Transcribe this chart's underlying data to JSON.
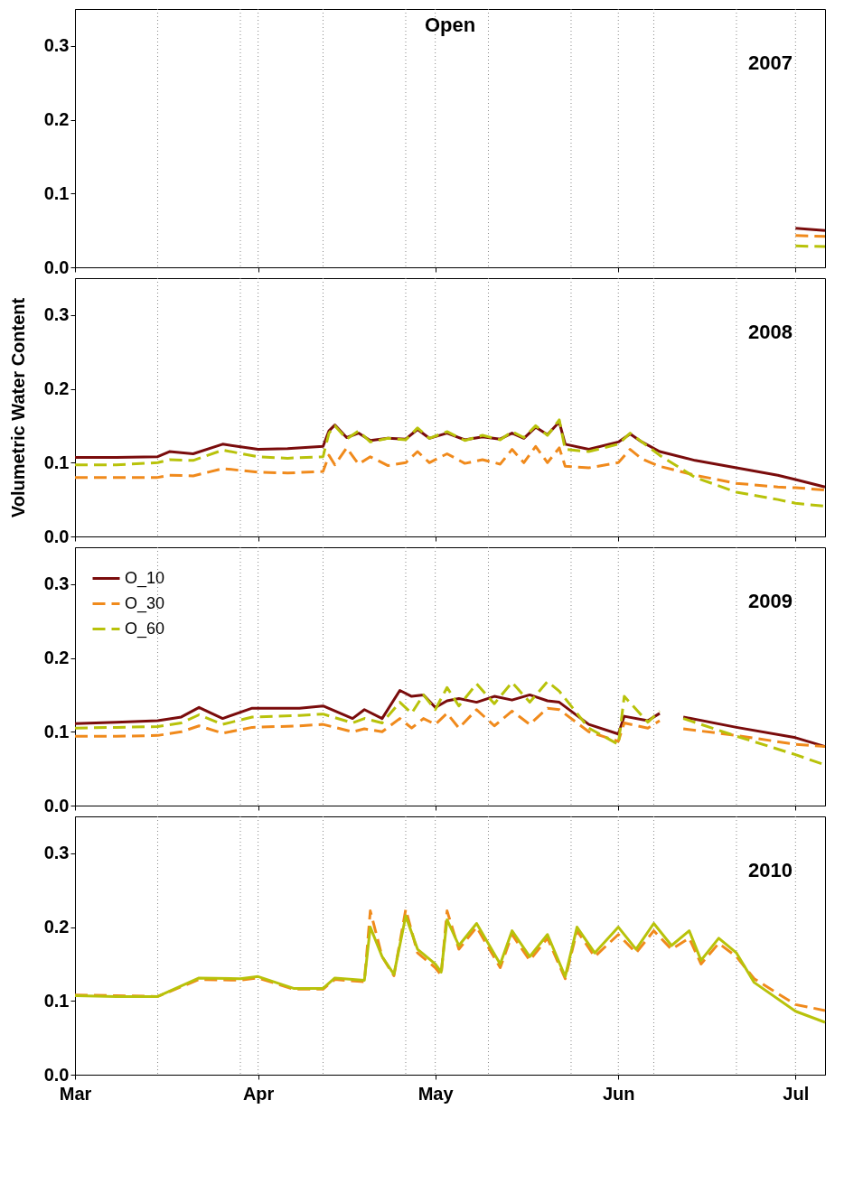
{
  "chart_data": [
    {
      "type": "line",
      "title": "Open",
      "annotations": [
        "2007"
      ],
      "xlim": [
        "--03-01",
        "--07-06"
      ],
      "xticks": [
        {
          "value": "--03-01",
          "label": "Mar"
        },
        {
          "value": "--04-01",
          "label": "Apr"
        },
        {
          "value": "--05-01",
          "label": "May"
        },
        {
          "value": "--06-01",
          "label": "Jun"
        },
        {
          "value": "--07-01",
          "label": "Jul"
        }
      ],
      "ylim": [
        0,
        0.35
      ],
      "yticks": [
        {
          "value": 0,
          "label": "0.0"
        },
        {
          "value": 0.1,
          "label": "0.1"
        },
        {
          "value": 0.2,
          "label": "0.2"
        },
        {
          "value": 0.3,
          "label": "0.3"
        }
      ],
      "tick_labels": "y",
      "ref_lines": [
        {
          "axis": "x",
          "value": "--03-15",
          "line_style": "dotted"
        },
        {
          "axis": "x",
          "value": "--03-29",
          "line_style": "dotted"
        },
        {
          "axis": "x",
          "value": "--04-01",
          "line_style": "dotted"
        },
        {
          "axis": "x",
          "value": "--04-12",
          "line_style": "dotted"
        },
        {
          "axis": "x",
          "value": "--04-26",
          "line_style": "dotted"
        },
        {
          "axis": "x",
          "value": "--05-01",
          "line_style": "dotted"
        },
        {
          "axis": "x",
          "value": "--05-10",
          "line_style": "dotted"
        },
        {
          "axis": "x",
          "value": "--05-24",
          "line_style": "dotted"
        },
        {
          "axis": "x",
          "value": "--06-01",
          "line_style": "dotted"
        },
        {
          "axis": "x",
          "value": "--06-07",
          "line_style": "dotted"
        },
        {
          "axis": "x",
          "value": "--06-21",
          "line_style": "dotted"
        },
        {
          "axis": "x",
          "value": "--07-01",
          "line_style": "dotted"
        }
      ],
      "x": [
        "--07-01",
        "--07-06"
      ],
      "series": [
        {
          "color": "#7a0c0c",
          "line_style": "solid",
          "values": [
            0.053,
            0.05
          ]
        },
        {
          "color": "#f08a1c",
          "line_style": "dashed",
          "values": [
            0.043,
            0.042
          ]
        },
        {
          "color": "#b8c20a",
          "line_style": "dashed",
          "values": [
            0.029,
            0.028
          ]
        }
      ]
    },
    {
      "type": "line",
      "annotations": [
        "2008"
      ],
      "ylabel": "Volumetric Water Content",
      "xlim": [
        "--03-01",
        "--07-06"
      ],
      "xticks": [
        {
          "value": "--03-01",
          "label": "Mar"
        },
        {
          "value": "--04-01",
          "label": "Apr"
        },
        {
          "value": "--05-01",
          "label": "May"
        },
        {
          "value": "--06-01",
          "label": "Jun"
        },
        {
          "value": "--07-01",
          "label": "Jul"
        }
      ],
      "ylim": [
        0,
        0.35
      ],
      "yticks": [
        {
          "value": 0,
          "label": "0.0"
        },
        {
          "value": 0.1,
          "label": "0.1"
        },
        {
          "value": 0.2,
          "label": "0.2"
        },
        {
          "value": 0.3,
          "label": "0.3"
        }
      ],
      "tick_labels": "y",
      "ref_lines": [
        {
          "axis": "x",
          "value": "--03-15",
          "line_style": "dotted"
        },
        {
          "axis": "x",
          "value": "--03-29",
          "line_style": "dotted"
        },
        {
          "axis": "x",
          "value": "--04-01",
          "line_style": "dotted"
        },
        {
          "axis": "x",
          "value": "--04-12",
          "line_style": "dotted"
        },
        {
          "axis": "x",
          "value": "--04-26",
          "line_style": "dotted"
        },
        {
          "axis": "x",
          "value": "--05-01",
          "line_style": "dotted"
        },
        {
          "axis": "x",
          "value": "--05-10",
          "line_style": "dotted"
        },
        {
          "axis": "x",
          "value": "--05-24",
          "line_style": "dotted"
        },
        {
          "axis": "x",
          "value": "--06-01",
          "line_style": "dotted"
        },
        {
          "axis": "x",
          "value": "--06-07",
          "line_style": "dotted"
        },
        {
          "axis": "x",
          "value": "--06-21",
          "line_style": "dotted"
        },
        {
          "axis": "x",
          "value": "--07-01",
          "line_style": "dotted"
        }
      ],
      "x": [
        "--03-01",
        "--03-08",
        "--03-15",
        "--03-17",
        "--03-21",
        "--03-26",
        "--04-01",
        "--04-06",
        "--04-12",
        "--04-13",
        "--04-14",
        "--04-16",
        "--04-18",
        "--04-20",
        "--04-23",
        "--04-26",
        "--04-28",
        "--04-30",
        "--05-03",
        "--05-06",
        "--05-09",
        "--05-12",
        "--05-14",
        "--05-16",
        "--05-18",
        "--05-20",
        "--05-22",
        "--05-23",
        "--05-27",
        "--06-01",
        "--06-03",
        "--06-05",
        "--06-08",
        "--06-14",
        "--06-21",
        "--06-28",
        "--07-01",
        "--07-06"
      ],
      "series": [
        {
          "color": "#7a0c0c",
          "line_style": "solid",
          "values": [
            0.107,
            0.107,
            0.108,
            0.115,
            0.112,
            0.125,
            0.118,
            0.119,
            0.122,
            0.143,
            0.151,
            0.134,
            0.14,
            0.13,
            0.133,
            0.132,
            0.145,
            0.133,
            0.14,
            0.131,
            0.135,
            0.132,
            0.14,
            0.133,
            0.148,
            0.138,
            0.155,
            0.125,
            0.118,
            0.128,
            0.139,
            0.128,
            0.115,
            0.103,
            0.093,
            0.083,
            0.077,
            0.067
          ]
        },
        {
          "color": "#f08a1c",
          "line_style": "dashed",
          "values": [
            0.08,
            0.08,
            0.08,
            0.083,
            0.082,
            0.092,
            0.087,
            0.086,
            0.088,
            0.11,
            0.097,
            0.12,
            0.098,
            0.108,
            0.096,
            0.1,
            0.115,
            0.1,
            0.112,
            0.099,
            0.104,
            0.098,
            0.118,
            0.1,
            0.122,
            0.1,
            0.12,
            0.095,
            0.093,
            0.1,
            0.118,
            0.105,
            0.095,
            0.083,
            0.072,
            0.067,
            0.066,
            0.063
          ]
        },
        {
          "color": "#b8c20a",
          "line_style": "dashed",
          "values": [
            0.097,
            0.097,
            0.1,
            0.104,
            0.103,
            0.117,
            0.108,
            0.106,
            0.108,
            0.14,
            0.15,
            0.132,
            0.143,
            0.128,
            0.133,
            0.131,
            0.147,
            0.133,
            0.142,
            0.13,
            0.137,
            0.131,
            0.142,
            0.134,
            0.15,
            0.137,
            0.158,
            0.118,
            0.115,
            0.125,
            0.14,
            0.128,
            0.11,
            0.08,
            0.06,
            0.05,
            0.045,
            0.041
          ]
        }
      ]
    },
    {
      "type": "line",
      "annotations": [
        "2009"
      ],
      "legend": "top left",
      "xlim": [
        "--03-01",
        "--07-06"
      ],
      "xticks": [
        {
          "value": "--03-01",
          "label": "Mar"
        },
        {
          "value": "--04-01",
          "label": "Apr"
        },
        {
          "value": "--05-01",
          "label": "May"
        },
        {
          "value": "--06-01",
          "label": "Jun"
        },
        {
          "value": "--07-01",
          "label": "Jul"
        }
      ],
      "ylim": [
        0,
        0.35
      ],
      "yticks": [
        {
          "value": 0,
          "label": "0.0"
        },
        {
          "value": 0.1,
          "label": "0.1"
        },
        {
          "value": 0.2,
          "label": "0.2"
        },
        {
          "value": 0.3,
          "label": "0.3"
        }
      ],
      "tick_labels": "y",
      "ref_lines": [
        {
          "axis": "x",
          "value": "--03-15",
          "line_style": "dotted"
        },
        {
          "axis": "x",
          "value": "--03-29",
          "line_style": "dotted"
        },
        {
          "axis": "x",
          "value": "--04-01",
          "line_style": "dotted"
        },
        {
          "axis": "x",
          "value": "--04-12",
          "line_style": "dotted"
        },
        {
          "axis": "x",
          "value": "--04-26",
          "line_style": "dotted"
        },
        {
          "axis": "x",
          "value": "--05-01",
          "line_style": "dotted"
        },
        {
          "axis": "x",
          "value": "--05-10",
          "line_style": "dotted"
        },
        {
          "axis": "x",
          "value": "--05-24",
          "line_style": "dotted"
        },
        {
          "axis": "x",
          "value": "--06-01",
          "line_style": "dotted"
        },
        {
          "axis": "x",
          "value": "--06-07",
          "line_style": "dotted"
        },
        {
          "axis": "x",
          "value": "--06-21",
          "line_style": "dotted"
        },
        {
          "axis": "x",
          "value": "--07-01",
          "line_style": "dotted"
        }
      ],
      "x": [
        "--03-01",
        "--03-08",
        "--03-15",
        "--03-19",
        "--03-22",
        "--03-26",
        "--03-31",
        "--04-08",
        "--04-12",
        "--04-17",
        "--04-19",
        "--04-22",
        "--04-25",
        "--04-27",
        "--04-29",
        "--05-01",
        "--05-03",
        "--05-05",
        "--05-08",
        "--05-11",
        "--05-14",
        "--05-17",
        "--05-20",
        "--05-22",
        "--05-27",
        "--06-01",
        "--06-02",
        "--06-06",
        "--06-08",
        "--06-10",
        "--06-12",
        "--06-21",
        "--07-01",
        "--07-06"
      ],
      "series": [
        {
          "name": "O_10",
          "color": "#7a0c0c",
          "line_style": "solid",
          "values": [
            0.111,
            0.113,
            0.115,
            0.12,
            0.133,
            0.118,
            0.132,
            0.132,
            0.135,
            0.118,
            0.13,
            0.118,
            0.156,
            0.148,
            0.15,
            0.133,
            0.142,
            0.145,
            0.14,
            0.148,
            0.143,
            0.15,
            0.142,
            0.14,
            0.11,
            0.097,
            0.121,
            0.115,
            0.125,
            null,
            0.12,
            0.106,
            0.092,
            0.08
          ]
        },
        {
          "name": "O_30",
          "color": "#f08a1c",
          "line_style": "dashed",
          "values": [
            0.094,
            0.094,
            0.095,
            0.1,
            0.108,
            0.098,
            0.106,
            0.108,
            0.11,
            0.1,
            0.104,
            0.1,
            0.118,
            0.105,
            0.118,
            0.11,
            0.125,
            0.105,
            0.13,
            0.108,
            0.128,
            0.11,
            0.132,
            0.13,
            0.1,
            0.087,
            0.112,
            0.105,
            0.115,
            null,
            0.104,
            0.095,
            0.083,
            0.08
          ]
        },
        {
          "name": "O_60",
          "color": "#b8c20a",
          "line_style": "dashed",
          "values": [
            0.105,
            0.106,
            0.107,
            0.112,
            0.123,
            0.11,
            0.12,
            0.122,
            0.124,
            0.112,
            0.118,
            0.112,
            0.14,
            0.125,
            0.15,
            0.13,
            0.16,
            0.135,
            0.165,
            0.138,
            0.167,
            0.14,
            0.168,
            0.155,
            0.105,
            0.083,
            0.148,
            0.113,
            0.128,
            null,
            0.118,
            0.094,
            0.069,
            0.055
          ]
        }
      ]
    },
    {
      "type": "line",
      "annotations": [
        "2010"
      ],
      "xlim": [
        "--03-01",
        "--07-06"
      ],
      "xticks": [
        {
          "value": "--03-01",
          "label": "Mar"
        },
        {
          "value": "--04-01",
          "label": "Apr"
        },
        {
          "value": "--05-01",
          "label": "May"
        },
        {
          "value": "--06-01",
          "label": "Jun"
        },
        {
          "value": "--07-01",
          "label": "Jul"
        }
      ],
      "ylim": [
        0,
        0.35
      ],
      "yticks": [
        {
          "value": 0,
          "label": "0.0"
        },
        {
          "value": 0.1,
          "label": "0.1"
        },
        {
          "value": 0.2,
          "label": "0.2"
        },
        {
          "value": 0.3,
          "label": "0.3"
        }
      ],
      "ref_lines": [
        {
          "axis": "x",
          "value": "--03-15",
          "line_style": "dotted"
        },
        {
          "axis": "x",
          "value": "--03-29",
          "line_style": "dotted"
        },
        {
          "axis": "x",
          "value": "--04-01",
          "line_style": "dotted"
        },
        {
          "axis": "x",
          "value": "--04-12",
          "line_style": "dotted"
        },
        {
          "axis": "x",
          "value": "--04-26",
          "line_style": "dotted"
        },
        {
          "axis": "x",
          "value": "--05-01",
          "line_style": "dotted"
        },
        {
          "axis": "x",
          "value": "--05-10",
          "line_style": "dotted"
        },
        {
          "axis": "x",
          "value": "--05-24",
          "line_style": "dotted"
        },
        {
          "axis": "x",
          "value": "--06-01",
          "line_style": "dotted"
        },
        {
          "axis": "x",
          "value": "--06-07",
          "line_style": "dotted"
        },
        {
          "axis": "x",
          "value": "--06-21",
          "line_style": "dotted"
        },
        {
          "axis": "x",
          "value": "--07-01",
          "line_style": "dotted"
        }
      ],
      "x": [
        "--03-01",
        "--03-08",
        "--03-15",
        "--03-22",
        "--03-29",
        "--04-01",
        "--04-07",
        "--04-12",
        "--04-14",
        "--04-19",
        "--04-20",
        "--04-22",
        "--04-24",
        "--04-26",
        "--04-28",
        "--05-01",
        "--05-02",
        "--05-03",
        "--05-05",
        "--05-08",
        "--05-12",
        "--05-14",
        "--05-17",
        "--05-20",
        "--05-23",
        "--05-25",
        "--05-28",
        "--06-01",
        "--06-04",
        "--06-07",
        "--06-10",
        "--06-13",
        "--06-15",
        "--06-18",
        "--06-21",
        "--06-24",
        "--07-01",
        "--07-06"
      ],
      "series": [
        {
          "color": "#f08a1c",
          "line_style": "dashed",
          "values": [
            0.108,
            0.107,
            0.106,
            0.129,
            0.128,
            0.131,
            0.116,
            0.116,
            0.129,
            0.126,
            0.222,
            0.16,
            0.134,
            0.224,
            0.165,
            0.145,
            0.135,
            0.222,
            0.17,
            0.2,
            0.145,
            0.19,
            0.155,
            0.185,
            0.13,
            0.195,
            0.16,
            0.19,
            0.165,
            0.195,
            0.17,
            0.185,
            0.15,
            0.178,
            0.16,
            0.13,
            0.095,
            0.087
          ]
        },
        {
          "color": "#b8c20a",
          "line_style": "solid",
          "values": [
            0.107,
            0.106,
            0.106,
            0.131,
            0.13,
            0.133,
            0.117,
            0.117,
            0.131,
            0.128,
            0.2,
            0.16,
            0.136,
            0.215,
            0.17,
            0.15,
            0.139,
            0.21,
            0.175,
            0.205,
            0.15,
            0.195,
            0.16,
            0.19,
            0.133,
            0.2,
            0.165,
            0.2,
            0.17,
            0.205,
            0.175,
            0.195,
            0.155,
            0.185,
            0.165,
            0.125,
            0.086,
            0.071
          ]
        }
      ]
    }
  ]
}
